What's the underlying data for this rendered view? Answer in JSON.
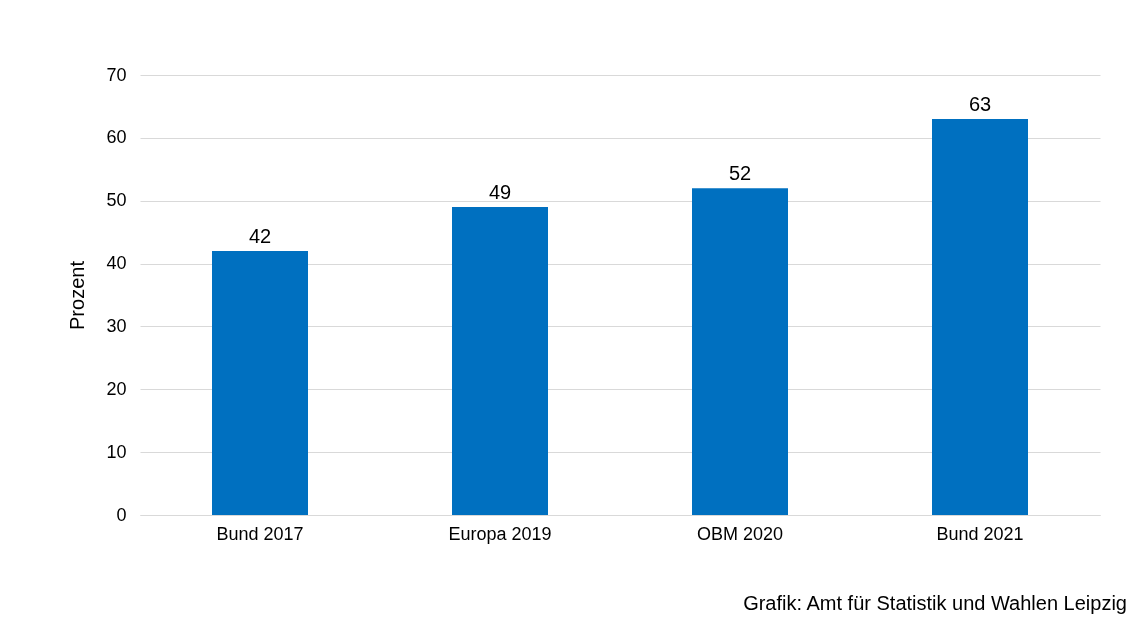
{
  "chart_data": {
    "type": "bar",
    "ylabel": "Prozent",
    "categories": [
      "Bund 2017",
      "Europa 2019",
      "OBM 2020",
      "Bund 2021"
    ],
    "values": [
      42,
      49,
      52,
      63
    ],
    "color": "#0070c0",
    "ylim": [
      0,
      70
    ],
    "yticks": [
      0,
      10,
      20,
      30,
      40,
      50,
      60,
      70
    ],
    "grid": "y",
    "data_labels": true,
    "annotations": [
      "Grafik: Amt für Statistik und Wahlen Leipzig"
    ]
  }
}
